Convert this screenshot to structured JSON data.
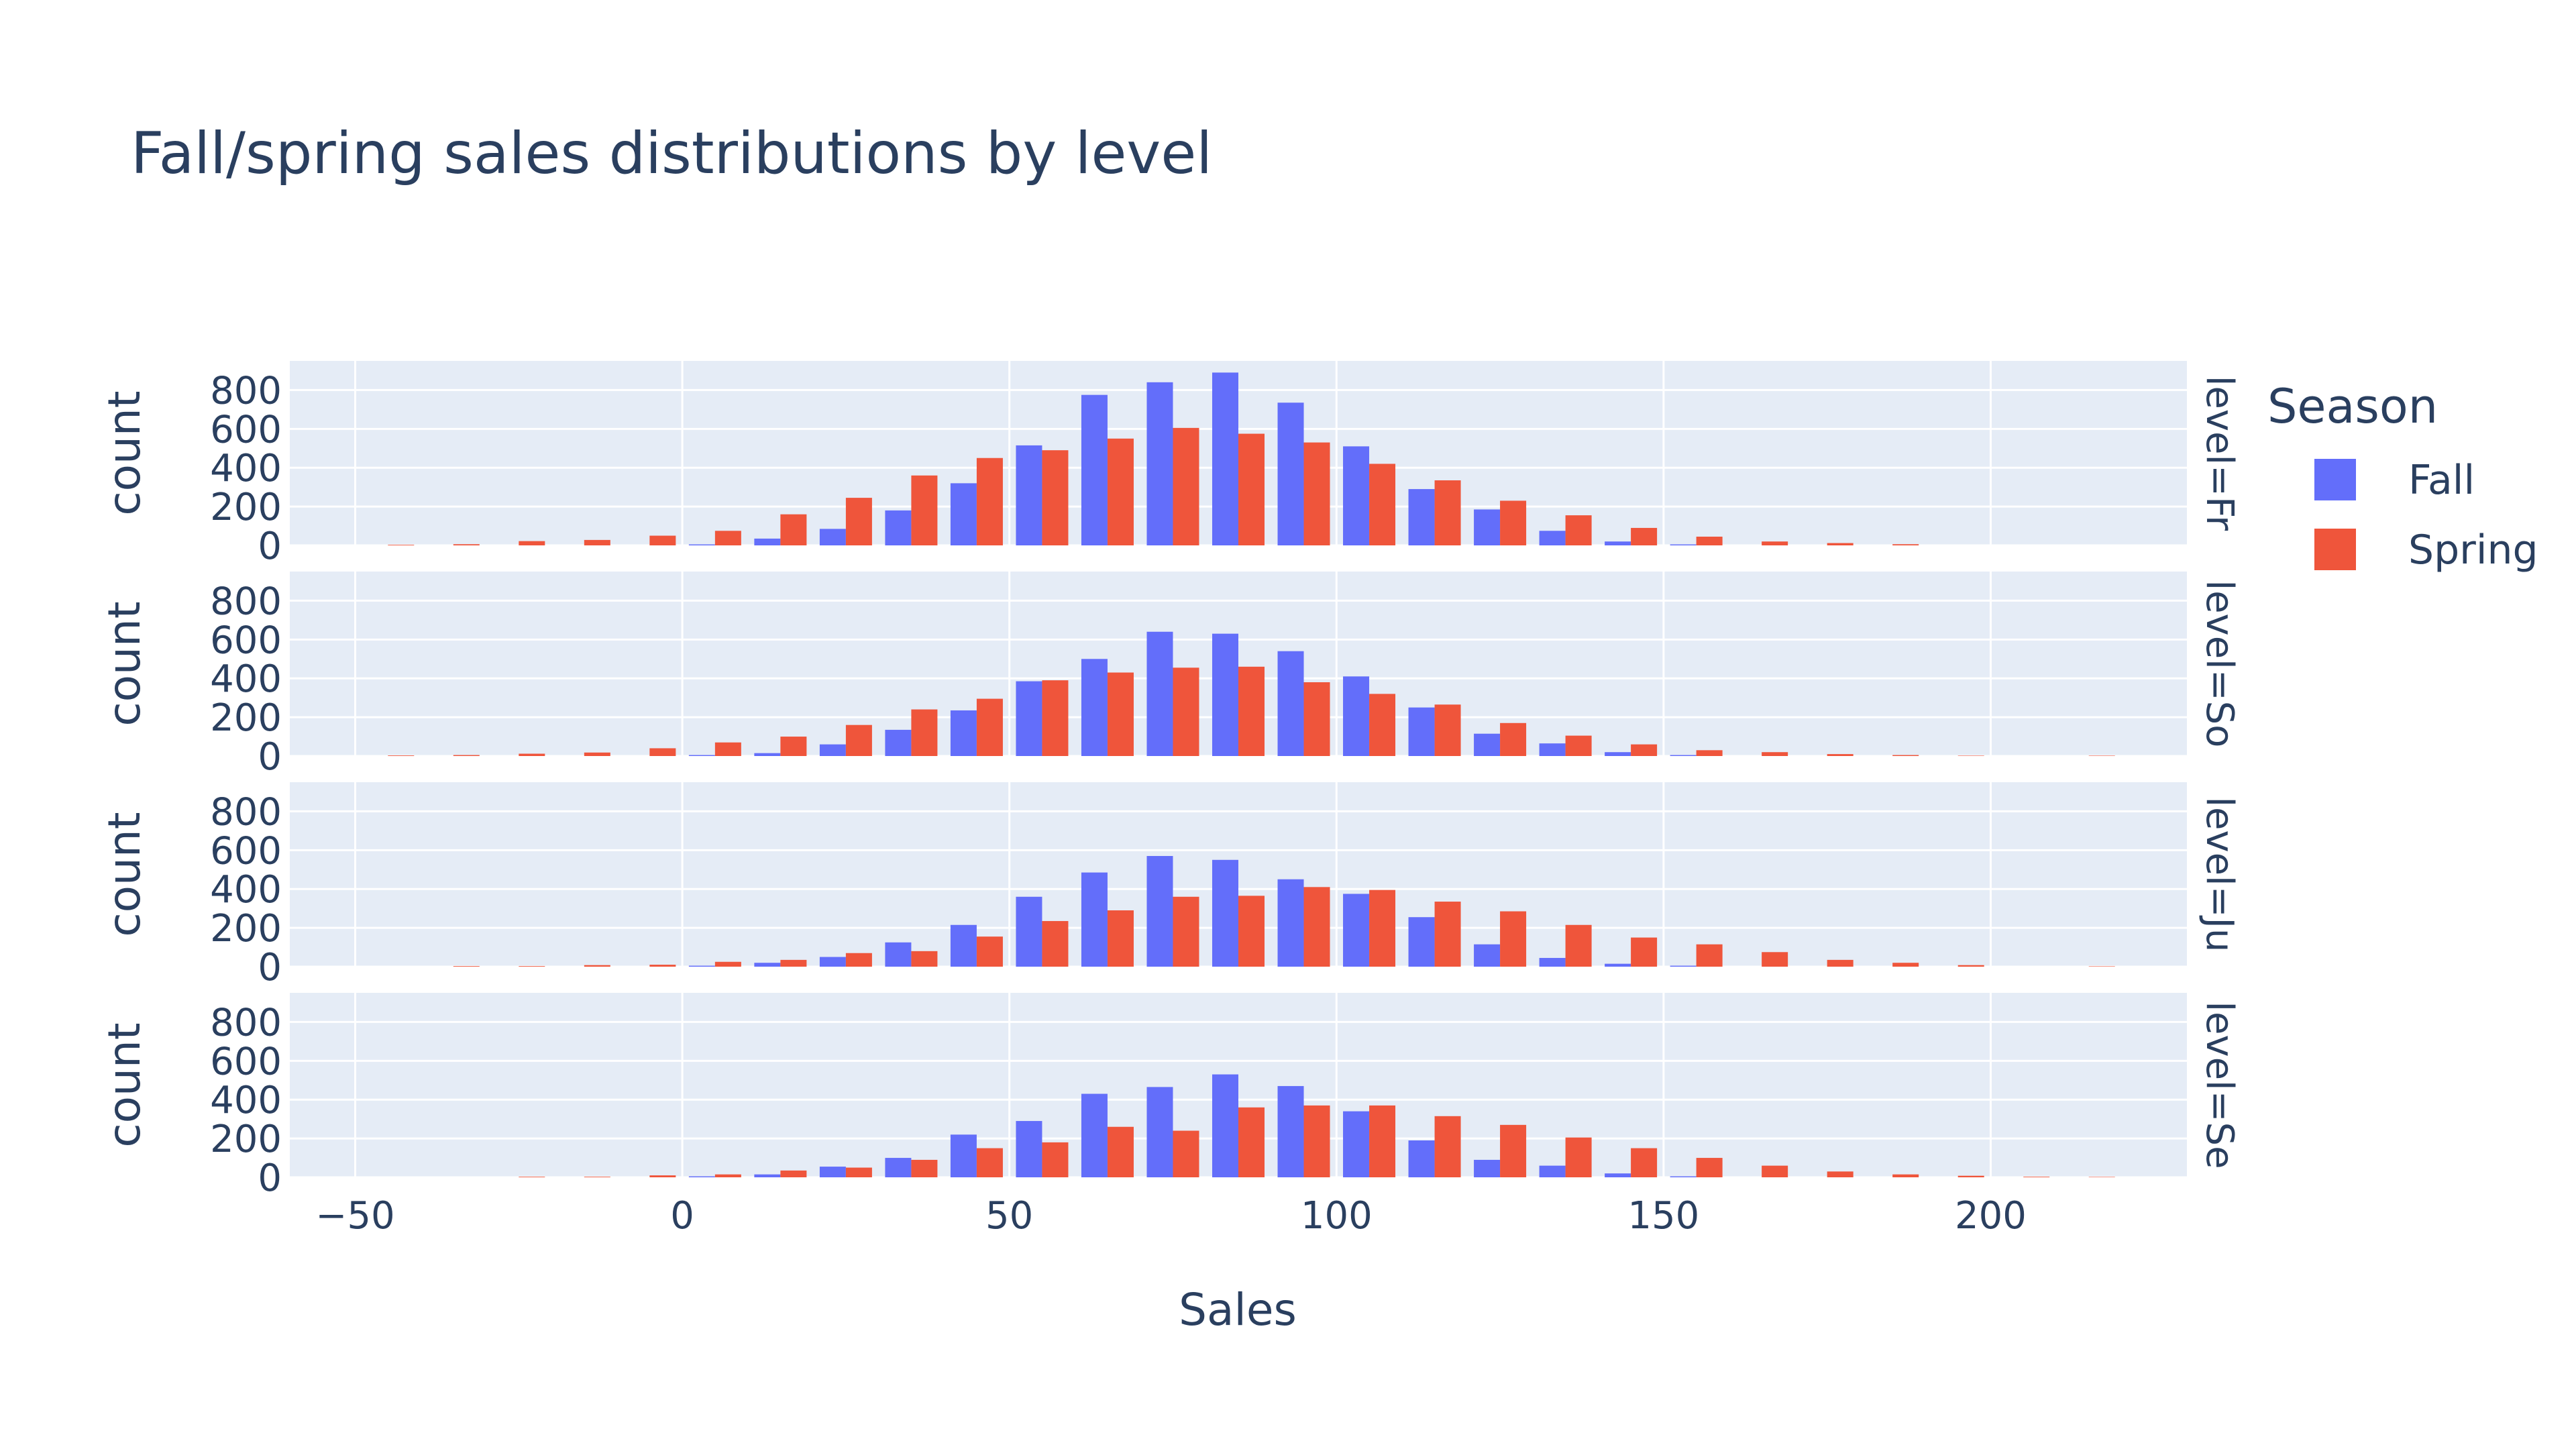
{
  "chart_data": {
    "type": "bar",
    "title": "Fall/spring sales distributions by level",
    "xlabel": "Sales",
    "ylabel": "count",
    "xlim": [
      -60,
      230
    ],
    "ylim": [
      0,
      950
    ],
    "x_ticks": [
      -50,
      0,
      50,
      100,
      150,
      200
    ],
    "x_tick_labels": [
      "−50",
      "0",
      "50",
      "100",
      "150",
      "200"
    ],
    "y_ticks": [
      0,
      200,
      400,
      600,
      800
    ],
    "y_tick_labels": [
      "0",
      "200",
      "400",
      "600",
      "800"
    ],
    "bin_width": 10,
    "grid": true,
    "legend_title": "Season",
    "legend_position": "right",
    "legend": [
      {
        "name": "Fall",
        "color": "#636efa"
      },
      {
        "name": "Spring",
        "color": "#ef553b"
      }
    ],
    "facets": [
      {
        "label": "level=Fr",
        "bins": [
          -45,
          -35,
          -25,
          -15,
          -5,
          5,
          15,
          25,
          35,
          45,
          55,
          65,
          75,
          85,
          95,
          105,
          115,
          125,
          135,
          145,
          155,
          165,
          175,
          185,
          195,
          205,
          215
        ],
        "series": [
          {
            "name": "Fall",
            "values": [
              0,
              0,
              0,
              0,
              0,
              5,
              35,
              85,
              180,
              320,
              515,
              775,
              840,
              890,
              735,
              510,
              290,
              185,
              75,
              20,
              5,
              0,
              0,
              0,
              0,
              0,
              0
            ]
          },
          {
            "name": "Spring",
            "values": [
              3,
              6,
              22,
              28,
              50,
              75,
              160,
              245,
              360,
              450,
              490,
              550,
              605,
              575,
              530,
              420,
              335,
              230,
              155,
              90,
              45,
              20,
              12,
              6,
              0,
              0,
              0
            ]
          }
        ]
      },
      {
        "label": "level=So",
        "bins": [
          -45,
          -35,
          -25,
          -15,
          -5,
          5,
          15,
          25,
          35,
          45,
          55,
          65,
          75,
          85,
          95,
          105,
          115,
          125,
          135,
          145,
          155,
          165,
          175,
          185,
          195,
          205,
          215
        ],
        "series": [
          {
            "name": "Fall",
            "values": [
              0,
              0,
              0,
              0,
              0,
              5,
              15,
              60,
              135,
              235,
              385,
              500,
              640,
              630,
              540,
              410,
              250,
              115,
              65,
              20,
              5,
              0,
              0,
              0,
              0,
              0,
              0
            ]
          },
          {
            "name": "Spring",
            "values": [
              3,
              5,
              12,
              18,
              40,
              70,
              100,
              160,
              240,
              295,
              390,
              430,
              455,
              460,
              380,
              320,
              265,
              170,
              105,
              60,
              30,
              20,
              10,
              5,
              2,
              0,
              2
            ]
          }
        ]
      },
      {
        "label": "level=Ju",
        "bins": [
          -45,
          -35,
          -25,
          -15,
          -5,
          5,
          15,
          25,
          35,
          45,
          55,
          65,
          75,
          85,
          95,
          105,
          115,
          125,
          135,
          145,
          155,
          165,
          175,
          185,
          195,
          205,
          215
        ],
        "series": [
          {
            "name": "Fall",
            "values": [
              0,
              0,
              0,
              0,
              0,
              5,
              20,
              50,
              125,
              215,
              360,
              485,
              570,
              550,
              450,
              375,
              255,
              115,
              45,
              15,
              5,
              0,
              0,
              0,
              0,
              0,
              0
            ]
          },
          {
            "name": "Spring",
            "values": [
              0,
              3,
              3,
              8,
              10,
              25,
              35,
              70,
              80,
              155,
              235,
              290,
              360,
              365,
              410,
              395,
              335,
              285,
              215,
              150,
              115,
              75,
              35,
              20,
              8,
              0,
              2
            ]
          }
        ]
      },
      {
        "label": "level=Se",
        "bins": [
          -45,
          -35,
          -25,
          -15,
          -5,
          5,
          15,
          25,
          35,
          45,
          55,
          65,
          75,
          85,
          95,
          105,
          115,
          125,
          135,
          145,
          155,
          165,
          175,
          185,
          195,
          205,
          215
        ],
        "series": [
          {
            "name": "Fall",
            "values": [
              0,
              0,
              0,
              0,
              0,
              5,
              15,
              55,
              100,
              220,
              290,
              430,
              465,
              530,
              470,
              340,
              190,
              90,
              60,
              20,
              5,
              0,
              0,
              0,
              0,
              0,
              0
            ]
          },
          {
            "name": "Spring",
            "values": [
              0,
              0,
              3,
              3,
              10,
              15,
              35,
              50,
              90,
              150,
              180,
              260,
              240,
              360,
              370,
              370,
              315,
              270,
              205,
              150,
              100,
              60,
              30,
              15,
              8,
              3,
              2
            ]
          }
        ]
      }
    ]
  }
}
